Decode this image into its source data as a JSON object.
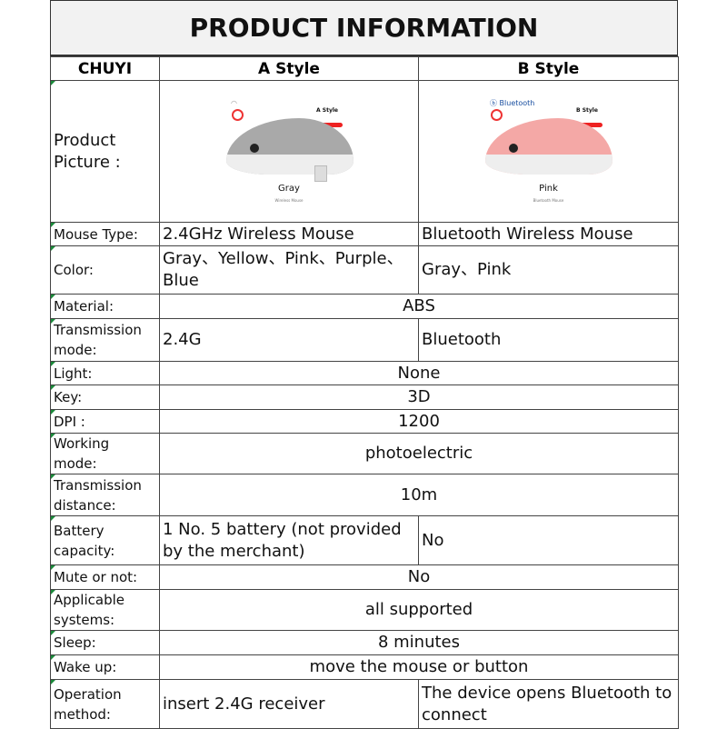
{
  "title": "PRODUCT INFORMATION",
  "header": [
    "CHUYI",
    "A Style",
    "B Style"
  ],
  "picture_label": "Product Picture :",
  "pictures": [
    {
      "style": "A Style",
      "color_name": "Gray",
      "sub": "Wireless Mouse",
      "icon": "wifi-icon",
      "color": "#a9a9a9"
    },
    {
      "style": "B Style",
      "color_name": "Pink",
      "sub": "Bluetooth Mouse",
      "icon": "bluetooth-icon",
      "color": "#f4a8a6"
    }
  ],
  "rows": [
    {
      "label": "Mouse Type:",
      "a": "2.4GHz Wireless Mouse",
      "b": "Bluetooth Wireless Mouse"
    },
    {
      "label": "Color:",
      "a": "Gray、Yellow、Pink、Purple、Blue",
      "b": "Gray、Pink"
    },
    {
      "label": "Material:",
      "all": "ABS"
    },
    {
      "label": "Transmission mode:",
      "a": "2.4G",
      "b": "Bluetooth"
    },
    {
      "label": "Light:",
      "all": "None"
    },
    {
      "label": "Key:",
      "all": "3D"
    },
    {
      "label": "DPI :",
      "all": "1200"
    },
    {
      "label": "Working mode:",
      "all": "photoelectric"
    },
    {
      "label": "Transmission distance:",
      "all": "10m"
    },
    {
      "label": "Battery capacity:",
      "a": "1 No. 5 battery (not provided by the merchant)",
      "b": "No"
    },
    {
      "label": "Mute or not:",
      "all": "No"
    },
    {
      "label": "Applicable systems:",
      "all": "all supported"
    },
    {
      "label": "Sleep:",
      "all": "8 minutes"
    },
    {
      "label": "Wake up:",
      "all": "move the mouse or button"
    },
    {
      "label": "Operation method:",
      "a": "insert 2.4G receiver",
      "b": "The device opens Bluetooth to connect"
    }
  ]
}
